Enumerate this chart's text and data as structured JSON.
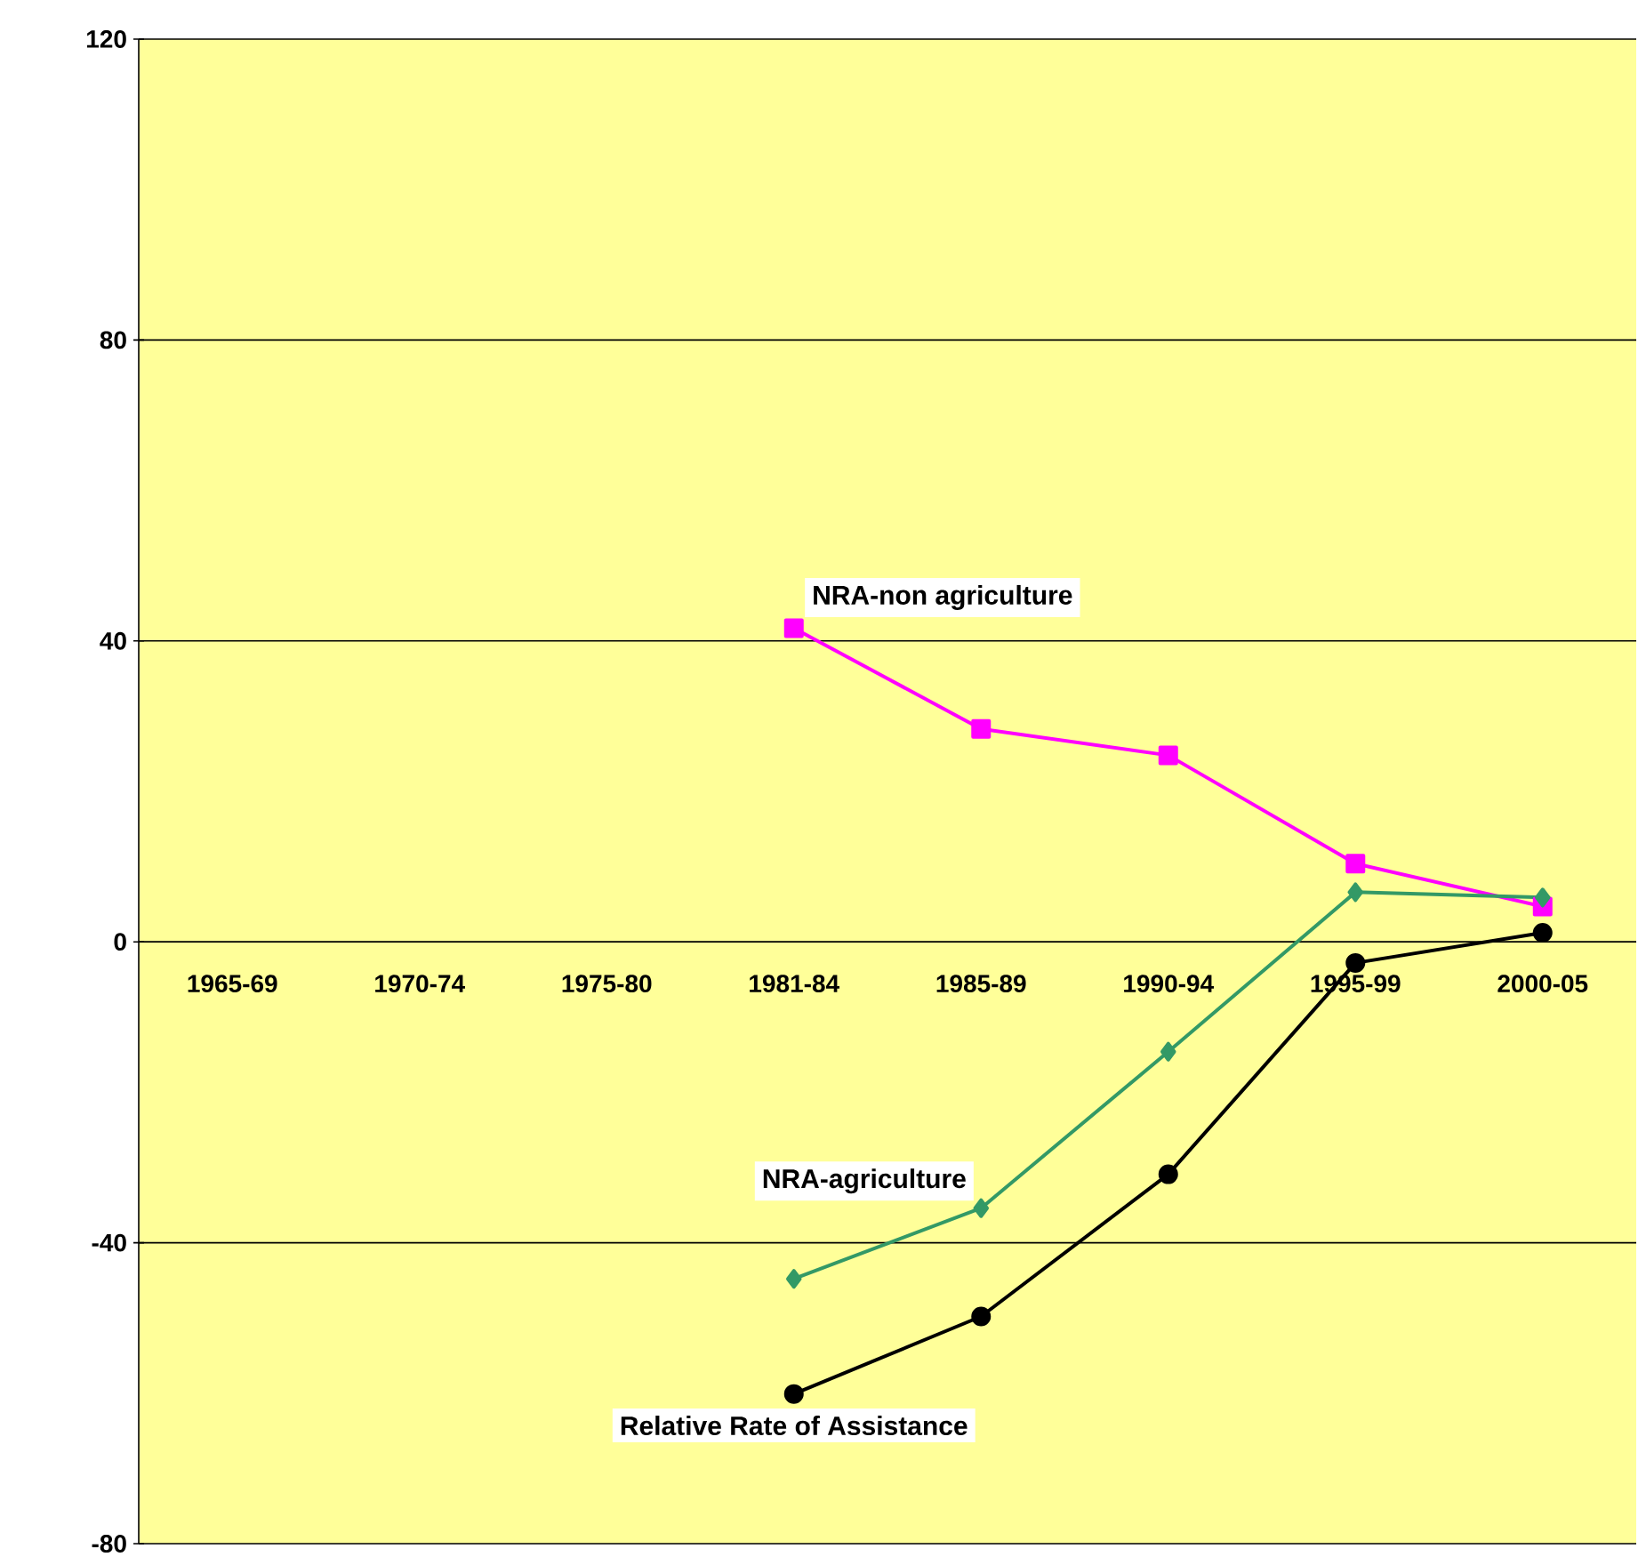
{
  "chart_data": {
    "type": "line",
    "categories": [
      "1965-69",
      "1970-74",
      "1975-80",
      "1981-84",
      "1985-89",
      "1990-94",
      "1995-99",
      "2000-05"
    ],
    "series": [
      {
        "name": "NRA-non agriculture",
        "color": "#ff00ff",
        "marker": "square",
        "values": [
          null,
          null,
          null,
          41.7,
          28.3,
          24.8,
          10.4,
          4.7
        ]
      },
      {
        "name": "NRA-agriculture",
        "color": "#339966",
        "marker": "diamond",
        "values": [
          null,
          null,
          null,
          -44.8,
          -35.4,
          -14.6,
          6.6,
          5.9
        ]
      },
      {
        "name": "Relative Rate of Assistance",
        "color": "#000000",
        "marker": "circle",
        "values": [
          null,
          null,
          null,
          -60.1,
          -49.8,
          -30.9,
          -2.8,
          1.2
        ]
      }
    ],
    "ylim": [
      -80,
      120
    ],
    "yticks": [
      -80,
      -40,
      0,
      40,
      80,
      120
    ],
    "grid": "y",
    "line_style": "solid"
  }
}
